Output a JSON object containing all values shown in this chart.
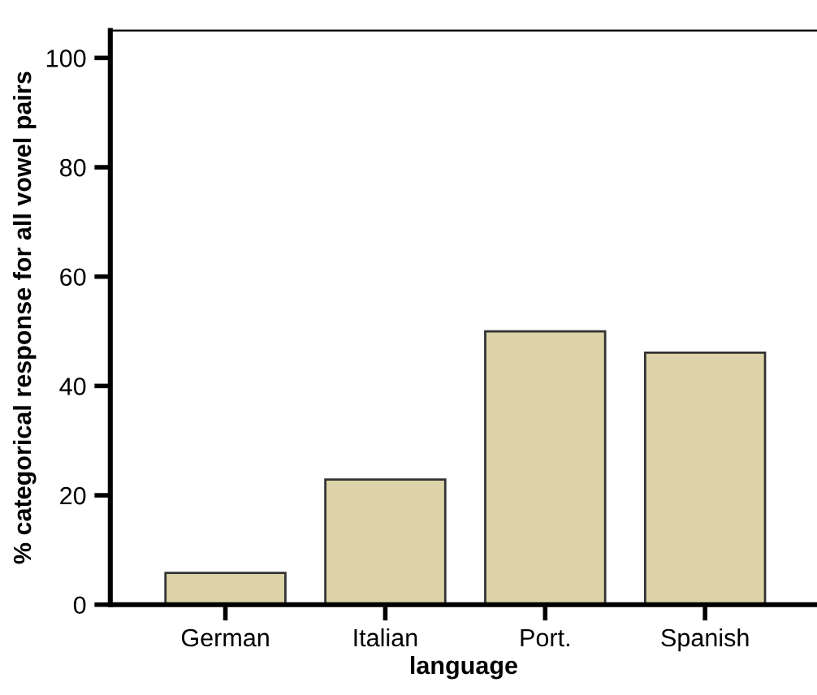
{
  "chart_data": {
    "type": "bar",
    "xlabel": "language",
    "ylabel": "% categorical response for all vowel pairs",
    "categories": [
      "German",
      "Italian",
      "Port.",
      "Spanish"
    ],
    "values": [
      5.8,
      22.9,
      50.0,
      46.1
    ],
    "color": "#dcd4a8",
    "ylim": [
      0,
      105
    ],
    "yticks": [
      0,
      20,
      40,
      60,
      80,
      100
    ],
    "grid": false
  }
}
